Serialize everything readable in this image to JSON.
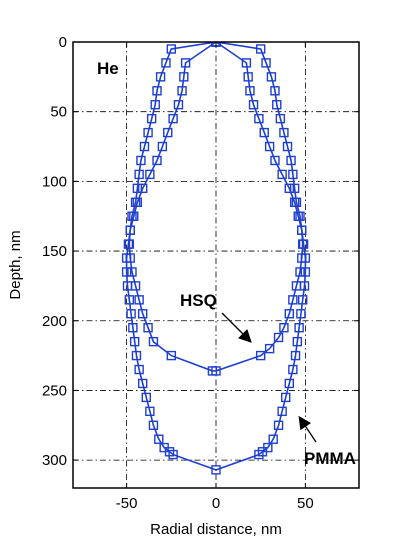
{
  "chart_data": {
    "type": "line",
    "title": "",
    "xlabel": "Radial distance, nm",
    "ylabel": "Depth, nm",
    "xlim": [
      -80,
      80
    ],
    "ylim": [
      0,
      320
    ],
    "y_inverted": true,
    "xticks": [
      -50,
      0,
      50
    ],
    "xtick_labels": [
      "-50",
      "0",
      "50"
    ],
    "yticks": [
      0,
      50,
      100,
      150,
      200,
      250,
      300
    ],
    "ytick_labels": [
      "0",
      "50",
      "100",
      "150",
      "200",
      "250",
      "300"
    ],
    "grid": true,
    "series_color": "#1e3fd0",
    "marker": "square",
    "panel_label": "He",
    "series": [
      {
        "name": "HSQ",
        "x": [
          0,
          25,
          28,
          31,
          33,
          34,
          36,
          38,
          40,
          42,
          43,
          44,
          45,
          47,
          48,
          48.5,
          48,
          47,
          45,
          43,
          41,
          38,
          35,
          30,
          25,
          0,
          -2,
          -25,
          -35,
          -38,
          -41,
          -43,
          -45,
          -47,
          -48,
          -48.5,
          -48,
          -47,
          -45,
          -44,
          -43,
          -42,
          -40,
          -38,
          -36,
          -34,
          -33,
          -31,
          -28,
          -25,
          0
        ],
        "y": [
          0,
          5,
          15,
          25,
          35,
          45,
          55,
          65,
          75,
          85,
          95,
          105,
          115,
          125,
          135,
          145,
          155,
          165,
          175,
          185,
          195,
          205,
          212,
          220,
          225,
          236,
          236,
          225,
          215,
          205,
          195,
          185,
          175,
          165,
          155,
          145,
          135,
          125,
          115,
          105,
          95,
          85,
          75,
          65,
          55,
          45,
          35,
          25,
          15,
          5,
          0
        ]
      },
      {
        "name": "PMMA",
        "x": [
          0,
          17,
          18,
          19,
          21,
          24,
          27,
          30,
          33,
          37,
          41,
          44,
          46,
          48,
          49,
          50,
          50,
          49.5,
          48.5,
          47.5,
          46.5,
          45.5,
          44.5,
          43,
          41,
          39,
          37,
          35,
          32,
          29,
          26,
          24,
          0,
          -24,
          -26,
          -29,
          -32,
          -35,
          -37,
          -39,
          -41,
          -43,
          -44.5,
          -45.5,
          -46.5,
          -47.5,
          -48.5,
          -49.5,
          -50,
          -50,
          -49,
          -48,
          -46,
          -44,
          -41,
          -37,
          -33,
          -30,
          -27,
          -24,
          -21,
          -19,
          -18,
          -17,
          0
        ],
        "y": [
          0,
          15,
          25,
          35,
          45,
          55,
          65,
          75,
          85,
          95,
          105,
          115,
          125,
          135,
          145,
          155,
          165,
          175,
          185,
          195,
          205,
          215,
          225,
          235,
          245,
          255,
          265,
          275,
          285,
          291,
          294,
          296,
          307,
          296,
          294,
          291,
          285,
          275,
          265,
          255,
          245,
          235,
          225,
          215,
          205,
          195,
          185,
          175,
          165,
          155,
          145,
          135,
          125,
          115,
          105,
          95,
          85,
          75,
          65,
          55,
          45,
          35,
          25,
          15,
          0
        ]
      }
    ],
    "annotations": [
      {
        "text": "HSQ",
        "arrow_to": [
          28,
          222
        ]
      },
      {
        "text": "PMMA",
        "arrow_to": [
          46,
          270
        ]
      }
    ]
  }
}
